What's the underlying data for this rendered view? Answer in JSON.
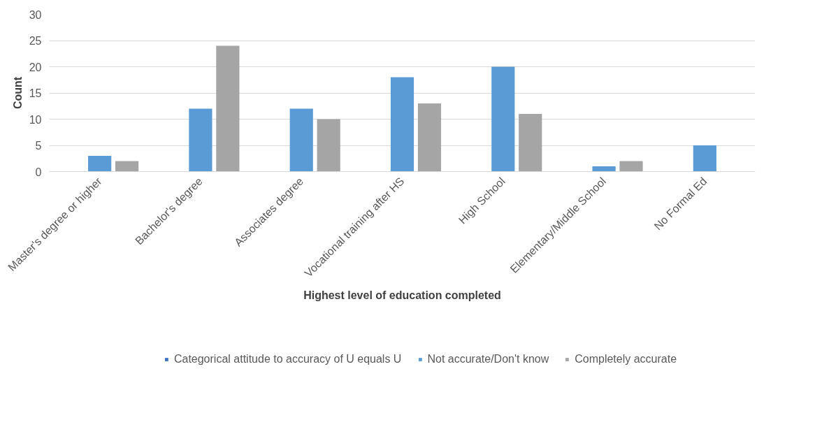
{
  "chart_data": {
    "type": "bar",
    "xlabel": "Highest level of education completed",
    "ylabel": "Count",
    "categories": [
      "Master's degree or higher",
      "Bachelor's degree",
      "Associates degree",
      "Vocational training after HS",
      "High School",
      "Elementary/Middle School",
      "No Formal Ed"
    ],
    "series": [
      {
        "name": "Categorical attitude to accuracy of U equals U",
        "color": "#3f73c2",
        "values": [
          null,
          null,
          null,
          null,
          null,
          null,
          null
        ]
      },
      {
        "name": "Not accurate/Don't know",
        "color": "#5b9bd5",
        "values": [
          3,
          12,
          12,
          18,
          20,
          1,
          5
        ]
      },
      {
        "name": "Completely accurate",
        "color": "#a5a5a5",
        "values": [
          2,
          24,
          10,
          13,
          11,
          2,
          null
        ]
      }
    ],
    "ylim": [
      0,
      30
    ],
    "yticks": [
      0,
      5,
      10,
      15,
      20,
      25,
      30
    ],
    "grid": "y",
    "legend": "bottom"
  }
}
